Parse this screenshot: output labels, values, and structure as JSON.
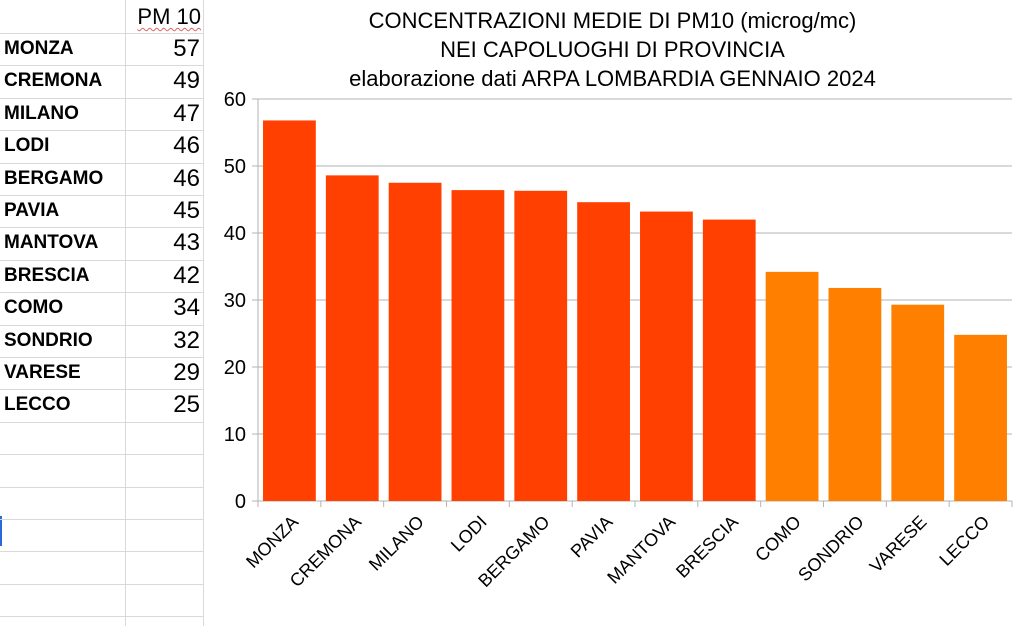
{
  "sheet": {
    "header": "PM 10",
    "rows": [
      {
        "city": "MONZA",
        "value": "57"
      },
      {
        "city": "CREMONA",
        "value": "49"
      },
      {
        "city": "MILANO",
        "value": "47"
      },
      {
        "city": "LODI",
        "value": "46"
      },
      {
        "city": "BERGAMO",
        "value": "46"
      },
      {
        "city": "PAVIA",
        "value": "45"
      },
      {
        "city": "MANTOVA",
        "value": "43"
      },
      {
        "city": "BRESCIA",
        "value": "42"
      },
      {
        "city": "COMO",
        "value": "34"
      },
      {
        "city": "SONDRIO",
        "value": "32"
      },
      {
        "city": "VARESE",
        "value": "29"
      },
      {
        "city": "LECCO",
        "value": "25"
      }
    ]
  },
  "chart_data": {
    "type": "bar",
    "title": "CONCENTRAZIONI MEDIE DI  PM10 (microg/mc)",
    "subtitle": "NEI CAPOLUOGHI DI PROVINCIA",
    "subtitle2": "elaborazione dati ARPA LOMBARDIA GENNAIO 2024",
    "categories": [
      "MONZA",
      "CREMONA",
      "MILANO",
      "LODI",
      "BERGAMO",
      "PAVIA",
      "MANTOVA",
      "BRESCIA",
      "COMO",
      "SONDRIO",
      "VARESE",
      "LECCO"
    ],
    "values": [
      56.8,
      48.6,
      47.5,
      46.4,
      46.3,
      44.6,
      43.2,
      42.0,
      34.2,
      31.8,
      29.3,
      24.8
    ],
    "ylim": [
      0,
      60
    ],
    "yticks": [
      0,
      10,
      20,
      30,
      40,
      50,
      60
    ],
    "grid": true,
    "legend": "none",
    "colors": {
      "high": "#ff4000",
      "low": "#ff8000",
      "grid": "#b3b3b3"
    },
    "high_count": 8
  }
}
